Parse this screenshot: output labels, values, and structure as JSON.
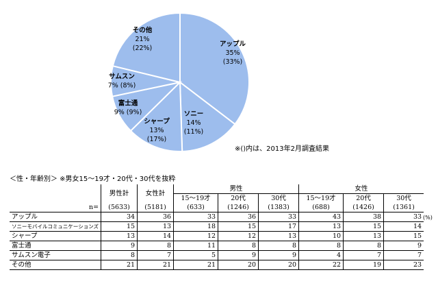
{
  "chart_data": {
    "type": "pie",
    "slices": [
      {
        "label": "アップル",
        "value": 35,
        "prev": "(33%)",
        "pct": "35%"
      },
      {
        "label": "ソニー",
        "value": 14,
        "prev": "(11%)",
        "pct": "14%"
      },
      {
        "label": "シャープ",
        "value": 13,
        "prev": "(17%)",
        "pct": "13%"
      },
      {
        "label": "富士通",
        "value": 9,
        "prev": "(9%)",
        "pct": "9%",
        "inline": "9% (9%)"
      },
      {
        "label": "サムスン",
        "value": 7,
        "prev": "(8%)",
        "pct": "7%",
        "inline": "7% (8%)"
      },
      {
        "label": "その他",
        "value": 21,
        "prev": "(22%)",
        "pct": "21%"
      }
    ],
    "note": "※()内は、2013年2月調査結果",
    "colors": {
      "slice": "#9DBDED",
      "stroke": "#ffffff"
    }
  },
  "subtitle": "＜性・年齢別＞ ※男女15～19才・20代・30代を抜粋",
  "table": {
    "header_groups": {
      "male": "男性",
      "female": "女性"
    },
    "columns": [
      {
        "label": "男性計",
        "n": "(5633)"
      },
      {
        "label": "女性計",
        "n": "(5181)"
      },
      {
        "label": "15～19才",
        "n": "(633)"
      },
      {
        "label": "20代",
        "n": "(1246)"
      },
      {
        "label": "30代",
        "n": "(1383)"
      },
      {
        "label": "15～19才",
        "n": "(688)"
      },
      {
        "label": "20代",
        "n": "(1426)"
      },
      {
        "label": "30代",
        "n": "(1361)"
      }
    ],
    "n_label": "n=",
    "unit": "(%)",
    "rows": [
      {
        "label": "アップル",
        "values": [
          "34",
          "36",
          "33",
          "36",
          "33",
          "43",
          "38",
          "33"
        ]
      },
      {
        "label": "ソニーモバイルコミュニケーションズ",
        "values": [
          "15",
          "13",
          "18",
          "15",
          "17",
          "13",
          "15",
          "14"
        ],
        "small": true
      },
      {
        "label": "シャープ",
        "values": [
          "13",
          "14",
          "12",
          "12",
          "13",
          "10",
          "13",
          "15"
        ]
      },
      {
        "label": "富士通",
        "values": [
          "9",
          "8",
          "11",
          "8",
          "8",
          "8",
          "8",
          "9"
        ]
      },
      {
        "label": "サムスン電子",
        "values": [
          "8",
          "7",
          "5",
          "9",
          "9",
          "4",
          "7",
          "7"
        ]
      },
      {
        "label": "その他",
        "values": [
          "21",
          "21",
          "21",
          "20",
          "20",
          "22",
          "19",
          "23"
        ]
      }
    ]
  }
}
